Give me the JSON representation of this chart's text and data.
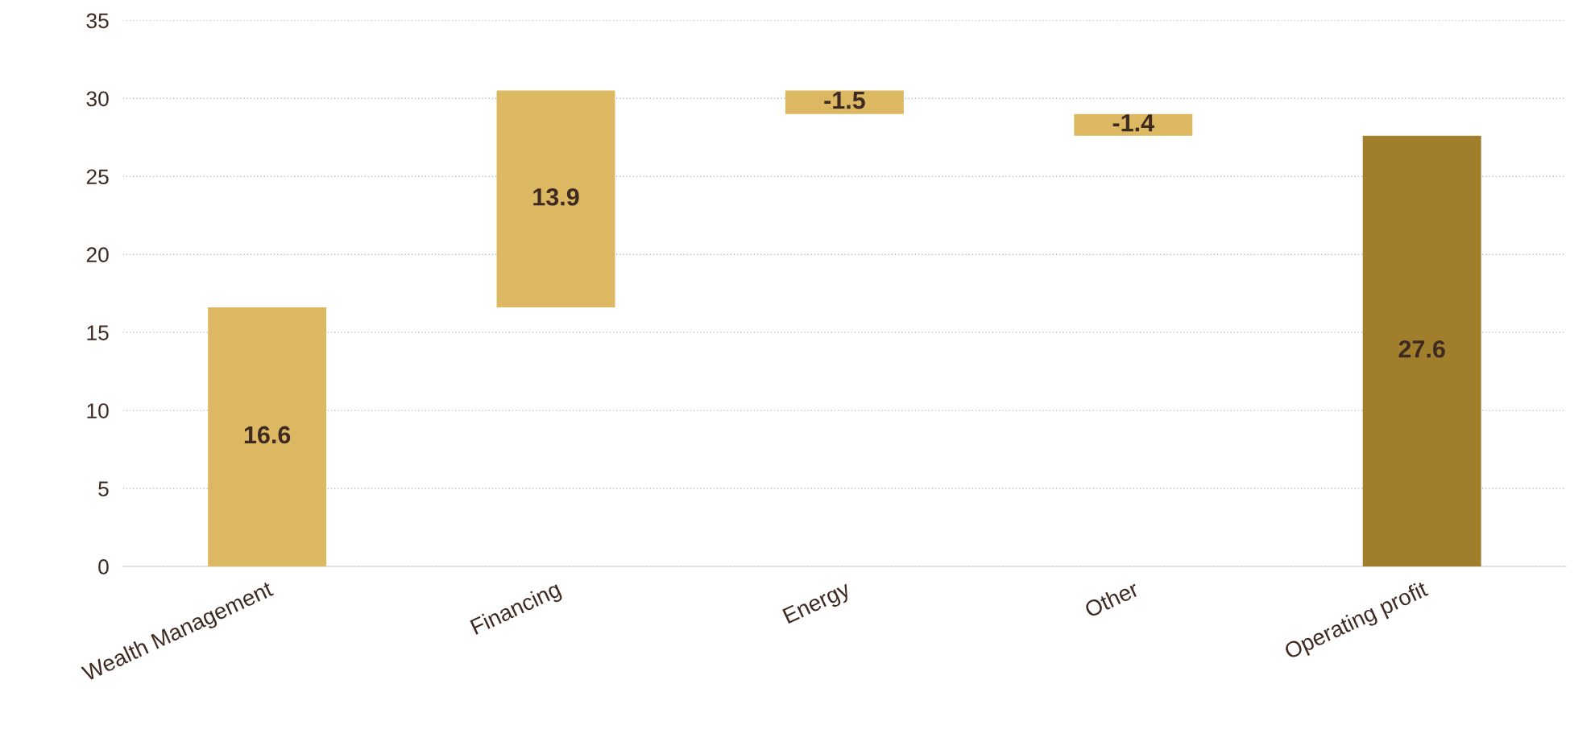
{
  "chart_data": {
    "type": "bar",
    "categories": [
      "Wealth Management",
      "Financing",
      "Energy",
      "Other",
      "Operating profit"
    ],
    "values": [
      16.6,
      13.9,
      -1.5,
      -1.4,
      27.6
    ],
    "base": [
      0,
      16.6,
      30.5,
      29.0,
      0
    ],
    "colors": [
      "#dcb862",
      "#dcb862",
      "#dcb862",
      "#dcb862",
      "#a07e2c"
    ],
    "data_labels": true,
    "ylim": [
      0,
      35
    ],
    "yticks": [
      0,
      5,
      10,
      15,
      20,
      25,
      30,
      35
    ],
    "grid": "y",
    "legend": false
  }
}
